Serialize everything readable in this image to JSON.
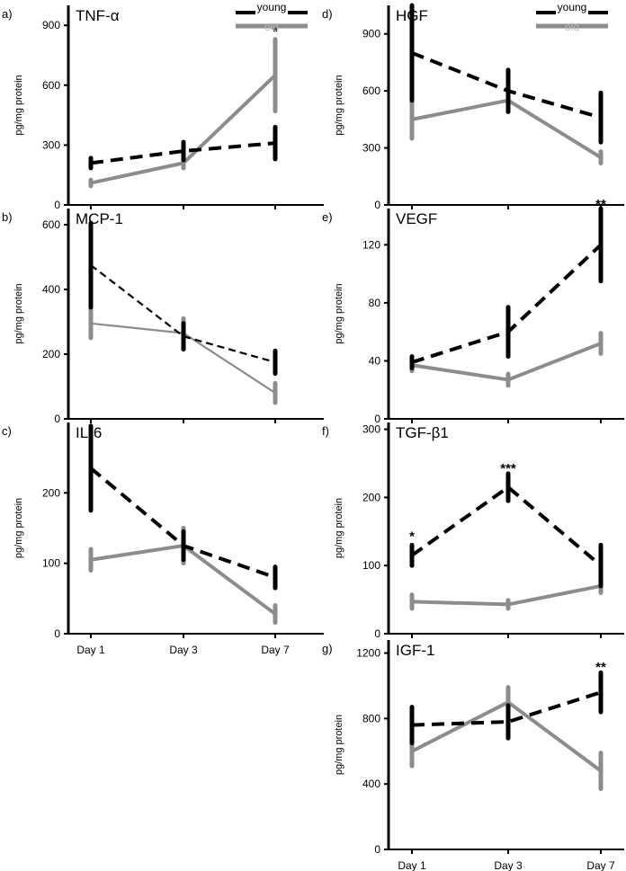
{
  "colors": {
    "young": "#000000",
    "old": "#8c8c8c"
  },
  "chart_data": [
    {
      "id": "a",
      "panel_label": "a)",
      "title": "TNF-α",
      "type": "line",
      "ylabel": "pg/mg protein",
      "ylim": [
        0,
        1000
      ],
      "yticks": [
        0,
        300,
        600,
        900
      ],
      "categories": [
        "Day 1",
        "Day 3",
        "Day 7"
      ],
      "show_xticks": false,
      "legend": {
        "young": "young",
        "old": "old"
      },
      "series": [
        {
          "name": "young",
          "values": [
            210,
            270,
            310
          ],
          "err": [
            25,
            45,
            80
          ],
          "style": "dashed"
        },
        {
          "name": "old",
          "values": [
            110,
            210,
            650
          ],
          "err": [
            15,
            25,
            180
          ],
          "style": "solid"
        }
      ],
      "annotations": [
        {
          "index": 2,
          "text": "*",
          "value": 870
        }
      ]
    },
    {
      "id": "b",
      "panel_label": "b)",
      "title": "MCP-1",
      "type": "line",
      "ylabel": "pg/mg protein",
      "ylim": [
        0,
        650
      ],
      "yticks": [
        0,
        200,
        400,
        600
      ],
      "categories": [
        "Day 1",
        "Day 3",
        "Day 7"
      ],
      "show_xticks": false,
      "series": [
        {
          "name": "young",
          "values": [
            475,
            255,
            175
          ],
          "err": [
            130,
            40,
            35
          ],
          "style": "dashed-thin"
        },
        {
          "name": "old",
          "values": [
            295,
            265,
            80
          ],
          "err": [
            45,
            45,
            30
          ],
          "style": "solid-thin"
        }
      ],
      "annotations": []
    },
    {
      "id": "c",
      "panel_label": "c)",
      "title": "IL-6",
      "type": "line",
      "ylabel": "pg/mg protein",
      "ylim": [
        0,
        300
      ],
      "yticks": [
        0,
        100,
        200
      ],
      "categories": [
        "Day 1",
        "Day 3",
        "Day 7"
      ],
      "show_xticks": true,
      "series": [
        {
          "name": "young",
          "values": [
            235,
            125,
            80
          ],
          "err": [
            60,
            20,
            15
          ],
          "style": "dashed"
        },
        {
          "name": "old",
          "values": [
            105,
            125,
            28
          ],
          "err": [
            15,
            25,
            12
          ],
          "style": "solid"
        }
      ],
      "annotations": []
    },
    {
      "id": "d",
      "panel_label": "d)",
      "title": "HGF",
      "type": "line",
      "ylabel": "pg/mg protein",
      "ylim": [
        0,
        1050
      ],
      "yticks": [
        0,
        300,
        600,
        900
      ],
      "categories": [
        "Day 1",
        "Day 3",
        "Day 7"
      ],
      "show_xticks": false,
      "legend": {
        "young": "young",
        "old": "old"
      },
      "series": [
        {
          "name": "young",
          "values": [
            800,
            600,
            460
          ],
          "err": [
            250,
            110,
            130
          ],
          "style": "dashed"
        },
        {
          "name": "old",
          "values": [
            450,
            550,
            250
          ],
          "err": [
            100,
            60,
            30
          ],
          "style": "solid"
        }
      ],
      "annotations": []
    },
    {
      "id": "e",
      "panel_label": "e)",
      "title": "VEGF",
      "type": "line",
      "ylabel": "pg/mg protein",
      "ylim": [
        0,
        145
      ],
      "yticks": [
        0,
        40,
        80,
        120
      ],
      "categories": [
        "Day 1",
        "Day 3",
        "Day 7"
      ],
      "show_xticks": false,
      "series": [
        {
          "name": "young",
          "values": [
            39,
            60,
            120
          ],
          "err": [
            4,
            17,
            25
          ],
          "style": "dashed"
        },
        {
          "name": "old",
          "values": [
            37,
            27,
            52
          ],
          "err": [
            4,
            4,
            7
          ],
          "style": "solid"
        }
      ],
      "annotations": [
        {
          "index": 2,
          "text": "**",
          "value": 148
        }
      ]
    },
    {
      "id": "f",
      "panel_label": "f)",
      "title": "TGF-β1",
      "type": "line",
      "ylabel": "pg/mg protein",
      "ylim": [
        0,
        310
      ],
      "yticks": [
        0,
        100,
        200,
        300
      ],
      "categories": [
        "Day 1",
        "Day 3",
        "Day 7"
      ],
      "show_xticks": false,
      "series": [
        {
          "name": "young",
          "values": [
            115,
            215,
            100
          ],
          "err": [
            15,
            20,
            30
          ],
          "style": "dashed"
        },
        {
          "name": "old",
          "values": [
            47,
            43,
            70
          ],
          "err": [
            10,
            6,
            10
          ],
          "style": "solid"
        }
      ],
      "annotations": [
        {
          "index": 0,
          "text": "*",
          "value": 143
        },
        {
          "index": 1,
          "text": "***",
          "value": 243
        }
      ]
    },
    {
      "id": "g",
      "panel_label": "g)",
      "title": "IGF-1",
      "type": "line",
      "ylabel": "pg/mg protein",
      "ylim": [
        0,
        1280
      ],
      "yticks": [
        0,
        400,
        800,
        1200
      ],
      "categories": [
        "Day 1",
        "Day 3",
        "Day 7"
      ],
      "show_xticks": true,
      "series": [
        {
          "name": "young",
          "values": [
            760,
            780,
            960
          ],
          "err": [
            110,
            100,
            120
          ],
          "style": "dashed"
        },
        {
          "name": "old",
          "values": [
            600,
            900,
            480
          ],
          "err": [
            90,
            90,
            110
          ],
          "style": "solid"
        }
      ],
      "annotations": [
        {
          "index": 2,
          "text": "**",
          "value": 1115
        }
      ]
    }
  ]
}
